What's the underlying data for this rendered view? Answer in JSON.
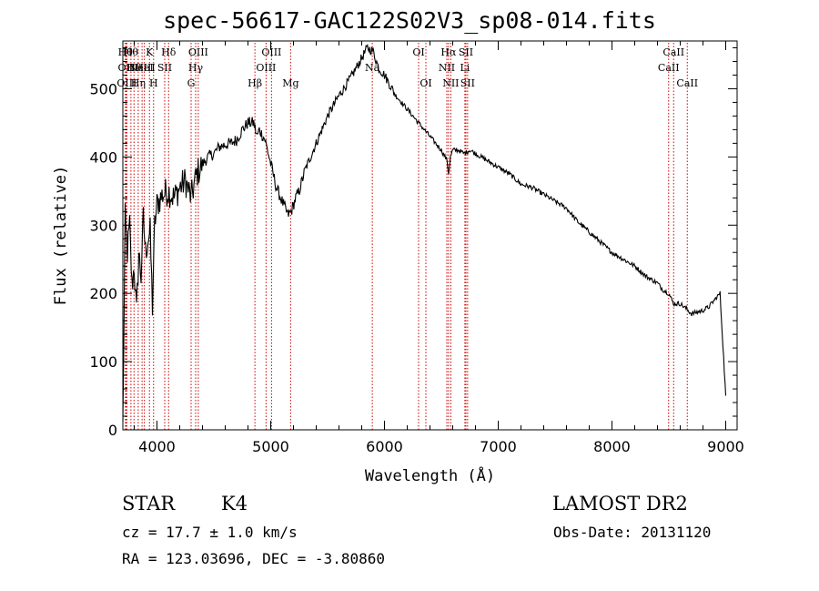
{
  "chart_data": {
    "type": "line",
    "title": "spec-56617-GAC122S02V3_sp08-014.fits",
    "xlabel": "Wavelength (Å)",
    "ylabel": "Flux (relative)",
    "xlim": [
      3700,
      9100
    ],
    "ylim": [
      0,
      570
    ],
    "x_ticks": [
      4000,
      5000,
      6000,
      7000,
      8000,
      9000
    ],
    "y_ticks": [
      0,
      100,
      200,
      300,
      400,
      500
    ],
    "grid": false,
    "line_color": "#000000",
    "marker_color": "#cc0000",
    "series": [
      {
        "x": [
          3700,
          3720,
          3740,
          3760,
          3780,
          3800,
          3820,
          3840,
          3860,
          3880,
          3900,
          3920,
          3940,
          3960,
          3980,
          4000,
          4050,
          4100,
          4150,
          4200,
          4250,
          4300,
          4350,
          4400,
          4450,
          4500,
          4550,
          4600,
          4650,
          4700,
          4750,
          4800,
          4850,
          4880,
          4900,
          4950,
          5000,
          5050,
          5100,
          5150,
          5180,
          5220,
          5250,
          5300,
          5400,
          5500,
          5600,
          5700,
          5800,
          5850,
          5900,
          5950,
          6000,
          6050,
          6100,
          6150,
          6200,
          6250,
          6300,
          6350,
          6400,
          6450,
          6500,
          6550,
          6563,
          6580,
          6600,
          6650,
          6700,
          6750,
          6800,
          6850,
          6900,
          7000,
          7100,
          7200,
          7300,
          7400,
          7500,
          7600,
          7700,
          7800,
          7900,
          8000,
          8100,
          8200,
          8300,
          8400,
          8450,
          8500,
          8540,
          8600,
          8650,
          8700,
          8800,
          8850,
          8900,
          8950,
          9000
        ],
        "y": [
          5,
          310,
          260,
          300,
          210,
          240,
          170,
          260,
          225,
          310,
          260,
          280,
          290,
          180,
          300,
          330,
          345,
          350,
          340,
          355,
          365,
          340,
          375,
          390,
          400,
          405,
          415,
          418,
          420,
          425,
          440,
          450,
          450,
          430,
          440,
          425,
          390,
          355,
          335,
          315,
          320,
          340,
          350,
          380,
          420,
          460,
          490,
          515,
          545,
          560,
          555,
          530,
          520,
          505,
          490,
          480,
          470,
          460,
          450,
          440,
          430,
          420,
          410,
          395,
          375,
          400,
          410,
          410,
          405,
          410,
          405,
          400,
          395,
          385,
          375,
          360,
          355,
          345,
          335,
          325,
          305,
          290,
          275,
          260,
          250,
          240,
          225,
          215,
          205,
          200,
          185,
          185,
          178,
          170,
          175,
          180,
          190,
          200,
          50
        ]
      }
    ],
    "line_markers": [
      {
        "x": 3722,
        "row": 0,
        "label": "Hθ"
      },
      {
        "x": 3727,
        "row": 1,
        "label": "OII"
      },
      {
        "x": 3735,
        "row": 2,
        "label": "OIII"
      },
      {
        "x": 3771,
        "row": 0,
        "label": "Hθ"
      },
      {
        "x": 3798,
        "row": 1,
        "label": "Hθ"
      },
      {
        "x": 3835,
        "row": 2,
        "label": "Hη"
      },
      {
        "x": 3869,
        "row": 1,
        "label": "NeIII"
      },
      {
        "x": 3889,
        "row": 1,
        "label": "HeI"
      },
      {
        "x": 3934,
        "row": 0,
        "label": "K"
      },
      {
        "x": 3970,
        "row": 2,
        "label": "H"
      },
      {
        "x": 4068,
        "row": 1,
        "label": "SII"
      },
      {
        "x": 4102,
        "row": 0,
        "label": "Hδ"
      },
      {
        "x": 4300,
        "row": 2,
        "label": "G"
      },
      {
        "x": 4340,
        "row": 1,
        "label": "Hγ"
      },
      {
        "x": 4363,
        "row": 0,
        "label": "OIII"
      },
      {
        "x": 4861,
        "row": 2,
        "label": "Hβ"
      },
      {
        "x": 4959,
        "row": 1,
        "label": "OIII"
      },
      {
        "x": 5007,
        "row": 0,
        "label": "OIII"
      },
      {
        "x": 5175,
        "row": 2,
        "label": "Mg"
      },
      {
        "x": 5893,
        "row": 1,
        "label": "Na"
      },
      {
        "x": 6300,
        "row": 0,
        "label": "OI"
      },
      {
        "x": 6364,
        "row": 2,
        "label": "OI"
      },
      {
        "x": 6548,
        "row": 1,
        "label": "NII"
      },
      {
        "x": 6563,
        "row": 0,
        "label": "Hα"
      },
      {
        "x": 6583,
        "row": 2,
        "label": "NII"
      },
      {
        "x": 6707,
        "row": 1,
        "label": "Li"
      },
      {
        "x": 6716,
        "row": 0,
        "label": "SII"
      },
      {
        "x": 6731,
        "row": 2,
        "label": "SII"
      },
      {
        "x": 8498,
        "row": 1,
        "label": "CaII"
      },
      {
        "x": 8542,
        "row": 0,
        "label": "CaII"
      },
      {
        "x": 8662,
        "row": 2,
        "label": "CaII"
      }
    ]
  },
  "info": {
    "class": "STAR",
    "subclass": "K4",
    "survey": "LAMOST DR2",
    "cz": "cz = 17.7 ± 1.0 km/s",
    "obs_date": "Obs-Date: 20131120",
    "coords": "RA = 123.03696, DEC =  -3.80860"
  }
}
